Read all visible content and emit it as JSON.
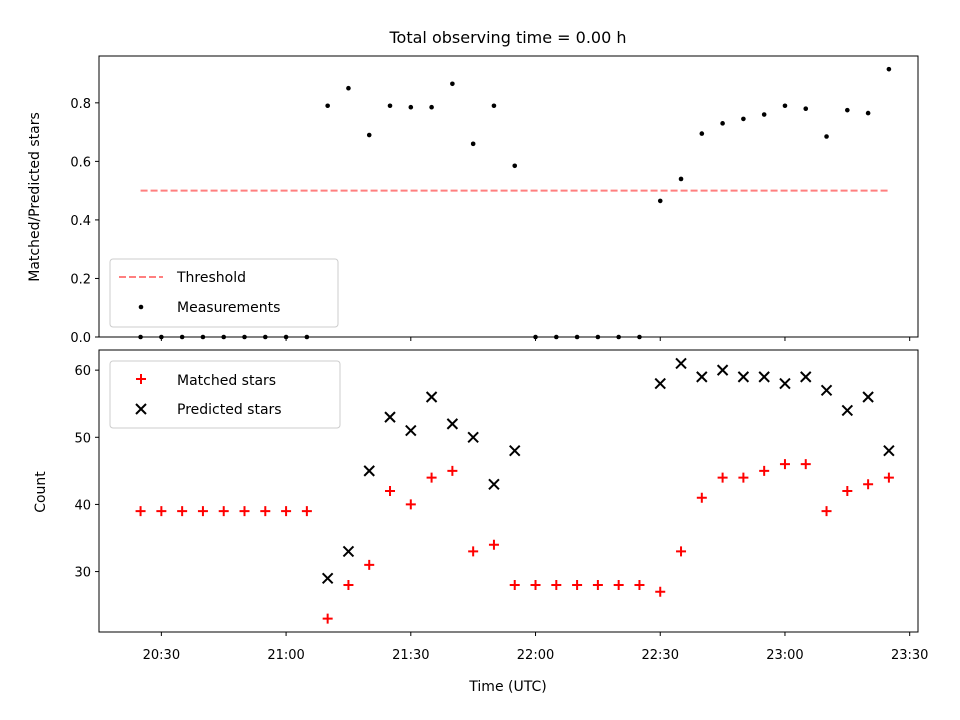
{
  "chart_data": {
    "title": "Total observing time = 0.00 h",
    "xlabel": "Time (UTC)",
    "xlim": [
      "20:15",
      "23:32"
    ],
    "x_ticks": [
      "20:30",
      "21:00",
      "21:30",
      "22:00",
      "22:30",
      "23:00",
      "23:30"
    ],
    "x": [
      "20:25",
      "20:30",
      "20:35",
      "20:40",
      "20:45",
      "20:50",
      "20:55",
      "21:00",
      "21:05",
      "21:10",
      "21:15",
      "21:20",
      "21:25",
      "21:30",
      "21:35",
      "21:40",
      "21:45",
      "21:50",
      "21:55",
      "22:00",
      "22:05",
      "22:10",
      "22:15",
      "22:20",
      "22:25",
      "22:30",
      "22:35",
      "22:40",
      "22:45",
      "22:50",
      "22:55",
      "23:00",
      "23:05",
      "23:10",
      "23:15",
      "23:20",
      "23:25"
    ],
    "panels": [
      {
        "type": "scatter",
        "ylabel": "Matched/Predicted stars",
        "ylim": [
          0,
          0.96
        ],
        "y_ticks": [
          "0.0",
          "0.2",
          "0.4",
          "0.6",
          "0.8"
        ],
        "legend_position": "lower-left",
        "threshold": {
          "name": "Threshold",
          "value": 0.5,
          "color": "#ff7f7f",
          "style": "dashed",
          "from": "20:25",
          "to": "23:25"
        },
        "series": [
          {
            "name": "Measurements",
            "marker": "dot",
            "color": "#000000",
            "values": [
              0,
              0,
              0,
              0,
              0,
              0,
              0,
              0,
              0,
              0.79,
              0.85,
              0.69,
              0.79,
              0.785,
              0.785,
              0.865,
              0.66,
              0.79,
              0.585,
              0,
              0,
              0,
              0,
              0,
              0,
              0.465,
              0.54,
              0.695,
              0.73,
              0.745,
              0.76,
              0.79,
              0.78,
              0.685,
              0.775,
              0.765,
              0.915
            ]
          }
        ]
      },
      {
        "type": "scatter",
        "ylabel": "Count",
        "ylim": [
          21,
          63
        ],
        "y_ticks": [
          "30",
          "40",
          "50",
          "60"
        ],
        "legend_position": "upper-left",
        "series": [
          {
            "name": "Matched stars",
            "marker": "plus",
            "color": "#ff0000",
            "values": [
              39,
              39,
              39,
              39,
              39,
              39,
              39,
              39,
              39,
              23,
              28,
              31,
              42,
              40,
              44,
              45,
              33,
              34,
              28,
              28,
              28,
              28,
              28,
              28,
              28,
              27,
              33,
              41,
              44,
              44,
              45,
              46,
              46,
              39,
              42,
              43,
              44
            ]
          },
          {
            "name": "Predicted stars",
            "marker": "x",
            "color": "#000000",
            "values": [
              null,
              null,
              null,
              null,
              null,
              null,
              null,
              null,
              null,
              29,
              33,
              45,
              53,
              51,
              56,
              52,
              50,
              43,
              48,
              null,
              null,
              null,
              null,
              null,
              null,
              58,
              61,
              59,
              60,
              59,
              59,
              58,
              59,
              57,
              54,
              56,
              48
            ]
          }
        ]
      }
    ]
  }
}
